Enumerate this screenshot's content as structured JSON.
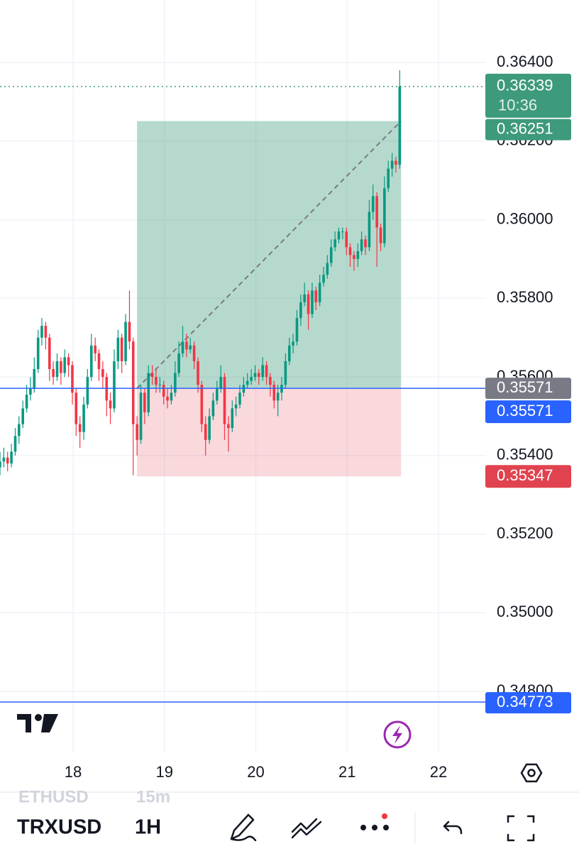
{
  "chart_data": {
    "type": "candlestick",
    "x": [
      17.2,
      17.242,
      17.283,
      17.325,
      17.367,
      17.408,
      17.45,
      17.492,
      17.533,
      17.575,
      17.617,
      17.658,
      17.7,
      17.742,
      17.783,
      17.825,
      17.867,
      17.908,
      17.95,
      17.992,
      18.033,
      18.075,
      18.117,
      18.158,
      18.2,
      18.242,
      18.283,
      18.325,
      18.367,
      18.408,
      18.45,
      18.492,
      18.533,
      18.575,
      18.617,
      18.658,
      18.7,
      18.742,
      18.783,
      18.825,
      18.867,
      18.908,
      18.95,
      18.992,
      19.033,
      19.075,
      19.117,
      19.158,
      19.2,
      19.242,
      19.283,
      19.325,
      19.367,
      19.408,
      19.45,
      19.492,
      19.533,
      19.575,
      19.617,
      19.658,
      19.7,
      19.742,
      19.783,
      19.825,
      19.867,
      19.908,
      19.95,
      19.992,
      20.033,
      20.075,
      20.117,
      20.158,
      20.2,
      20.242,
      20.283,
      20.325,
      20.367,
      20.408,
      20.45,
      20.492,
      20.533,
      20.575,
      20.617,
      20.658,
      20.7,
      20.742,
      20.783,
      20.825,
      20.867,
      20.908,
      20.95,
      20.992,
      21.033,
      21.075,
      21.117,
      21.158,
      21.2,
      21.242,
      21.283,
      21.325,
      21.367,
      21.408,
      21.45,
      21.492,
      21.533,
      21.575
    ],
    "open": [
      0.3537,
      0.35385,
      0.35395,
      0.3538,
      0.3541,
      0.3545,
      0.3548,
      0.3552,
      0.35555,
      0.3557,
      0.3562,
      0.357,
      0.3573,
      0.357,
      0.3562,
      0.356,
      0.3564,
      0.3561,
      0.3565,
      0.3563,
      0.3556,
      0.3548,
      0.3546,
      0.3553,
      0.356,
      0.3568,
      0.3566,
      0.3562,
      0.356,
      0.3554,
      0.3552,
      0.3564,
      0.357,
      0.3564,
      0.3574,
      0.3569,
      0.3548,
      0.3544,
      0.3556,
      0.3551,
      0.3561,
      0.356,
      0.3558,
      0.3558,
      0.3555,
      0.3554,
      0.3556,
      0.3561,
      0.3566,
      0.3569,
      0.3567,
      0.3568,
      0.3564,
      0.3558,
      0.3548,
      0.3544,
      0.355,
      0.3554,
      0.3557,
      0.356,
      0.3548,
      0.3547,
      0.3552,
      0.3553,
      0.3556,
      0.3558,
      0.3559,
      0.356,
      0.3561,
      0.356,
      0.3563,
      0.356,
      0.3558,
      0.3554,
      0.3556,
      0.3558,
      0.3564,
      0.3568,
      0.3569,
      0.3575,
      0.3579,
      0.3581,
      0.3576,
      0.3582,
      0.3579,
      0.3584,
      0.3586,
      0.3589,
      0.3593,
      0.3595,
      0.3597,
      0.3597,
      0.3593,
      0.3591,
      0.359,
      0.3592,
      0.3595,
      0.3593,
      0.3602,
      0.3606,
      0.3598,
      0.3594,
      0.3608,
      0.3613,
      0.3615,
      0.3614
    ],
    "high": [
      0.3541,
      0.3542,
      0.3541,
      0.3543,
      0.3547,
      0.355,
      0.3554,
      0.3558,
      0.356,
      0.3565,
      0.3572,
      0.3575,
      0.3574,
      0.3571,
      0.3564,
      0.3566,
      0.3565,
      0.3567,
      0.3566,
      0.3564,
      0.3557,
      0.355,
      0.3555,
      0.3562,
      0.3571,
      0.357,
      0.3567,
      0.3564,
      0.3561,
      0.3556,
      0.3567,
      0.3572,
      0.3571,
      0.3576,
      0.3582,
      0.357,
      0.355,
      0.3558,
      0.3557,
      0.3563,
      0.3563,
      0.3562,
      0.356,
      0.3559,
      0.3557,
      0.3558,
      0.3564,
      0.3569,
      0.3573,
      0.3571,
      0.357,
      0.3569,
      0.3565,
      0.3559,
      0.355,
      0.3552,
      0.3556,
      0.3559,
      0.3563,
      0.3561,
      0.355,
      0.3554,
      0.3555,
      0.3558,
      0.356,
      0.3561,
      0.3562,
      0.3563,
      0.3562,
      0.3565,
      0.3564,
      0.3561,
      0.3559,
      0.3558,
      0.356,
      0.3566,
      0.357,
      0.3571,
      0.3577,
      0.3581,
      0.3584,
      0.3582,
      0.3584,
      0.3583,
      0.3586,
      0.3588,
      0.3591,
      0.3595,
      0.3597,
      0.3598,
      0.3598,
      0.3598,
      0.3594,
      0.3592,
      0.3594,
      0.3597,
      0.3596,
      0.3605,
      0.3609,
      0.3607,
      0.3599,
      0.3611,
      0.3615,
      0.3617,
      0.3616,
      0.3638
    ],
    "low": [
      0.3535,
      0.3537,
      0.3536,
      0.3537,
      0.354,
      0.3543,
      0.3547,
      0.3551,
      0.3554,
      0.3556,
      0.3561,
      0.3568,
      0.3567,
      0.3559,
      0.3558,
      0.3559,
      0.3558,
      0.356,
      0.356,
      0.3553,
      0.3545,
      0.3542,
      0.3544,
      0.3552,
      0.3559,
      0.3564,
      0.3559,
      0.3557,
      0.355,
      0.3548,
      0.3551,
      0.3562,
      0.3561,
      0.3563,
      0.3567,
      0.3535,
      0.354,
      0.3543,
      0.3548,
      0.355,
      0.3558,
      0.3556,
      0.3556,
      0.3553,
      0.3552,
      0.3553,
      0.3555,
      0.356,
      0.3565,
      0.3565,
      0.3566,
      0.3562,
      0.3556,
      0.3546,
      0.354,
      0.3543,
      0.3549,
      0.3553,
      0.3556,
      0.3544,
      0.3541,
      0.3546,
      0.355,
      0.3552,
      0.3555,
      0.3557,
      0.3558,
      0.3559,
      0.3558,
      0.3559,
      0.3558,
      0.3555,
      0.3552,
      0.355,
      0.3554,
      0.3557,
      0.3563,
      0.3566,
      0.3568,
      0.3573,
      0.3578,
      0.3572,
      0.3575,
      0.3577,
      0.3578,
      0.3583,
      0.3585,
      0.3588,
      0.3592,
      0.3594,
      0.3595,
      0.3591,
      0.3588,
      0.3587,
      0.3588,
      0.3591,
      0.3591,
      0.3592,
      0.36,
      0.3588,
      0.3592,
      0.3593,
      0.3607,
      0.3611,
      0.3612,
      0.3613
    ],
    "close": [
      0.35385,
      0.35395,
      0.3538,
      0.3541,
      0.3545,
      0.3548,
      0.3552,
      0.35555,
      0.3557,
      0.3562,
      0.357,
      0.3573,
      0.357,
      0.3562,
      0.356,
      0.3564,
      0.3561,
      0.3565,
      0.3563,
      0.3556,
      0.3548,
      0.3546,
      0.3553,
      0.356,
      0.3568,
      0.3566,
      0.3562,
      0.356,
      0.3554,
      0.3552,
      0.3564,
      0.357,
      0.3564,
      0.3574,
      0.3569,
      0.3548,
      0.3544,
      0.3556,
      0.3551,
      0.3561,
      0.356,
      0.3558,
      0.3558,
      0.3555,
      0.3554,
      0.3556,
      0.3561,
      0.3566,
      0.3569,
      0.3567,
      0.3568,
      0.3564,
      0.3558,
      0.3548,
      0.3544,
      0.355,
      0.3554,
      0.3557,
      0.356,
      0.3548,
      0.3547,
      0.3552,
      0.3553,
      0.3556,
      0.3558,
      0.3559,
      0.356,
      0.3561,
      0.356,
      0.3563,
      0.356,
      0.3558,
      0.3554,
      0.3556,
      0.3558,
      0.3564,
      0.3568,
      0.3569,
      0.3575,
      0.3579,
      0.3581,
      0.3576,
      0.3582,
      0.3579,
      0.3584,
      0.3586,
      0.3589,
      0.3593,
      0.3595,
      0.3597,
      0.3597,
      0.3593,
      0.3591,
      0.359,
      0.3592,
      0.3595,
      0.3593,
      0.3602,
      0.3606,
      0.3598,
      0.3594,
      0.3608,
      0.3613,
      0.3615,
      0.3614,
      0.36339
    ],
    "up_color": "#089981",
    "down_color": "#f23645",
    "xlim": [
      17.2,
      22.52
    ],
    "ylim": [
      0.34645,
      0.36559
    ],
    "xticks": [
      18,
      19,
      20,
      21,
      22
    ],
    "yticks": [
      {
        "value": 0.348,
        "label": "0.34800"
      },
      {
        "value": 0.35,
        "label": "0.35000"
      },
      {
        "value": 0.352,
        "label": "0.35200"
      },
      {
        "value": 0.354,
        "label": "0.35400"
      },
      {
        "value": 0.356,
        "label": "0.35600"
      },
      {
        "value": 0.358,
        "label": "0.35800"
      },
      {
        "value": 0.36,
        "label": "0.36000"
      },
      {
        "value": 0.362,
        "label": "0.36200"
      },
      {
        "value": 0.364,
        "label": "0.36400"
      }
    ],
    "grid": true,
    "current_price": {
      "value": 0.36339,
      "countdown": "10:36",
      "color": "#3e9a7c"
    },
    "position": {
      "entry": 0.35571,
      "target": 0.36251,
      "stop": 0.35347,
      "start": 18.7,
      "end": 21.59,
      "entry_color": "#787b86",
      "target_color": "#3e9a7c",
      "stop_color": "#e0434f"
    },
    "horizontal_lines": [
      {
        "value": 0.35571,
        "color": "#2962ff"
      },
      {
        "value": 0.34773,
        "color": "#2962ff"
      }
    ]
  },
  "toolbar": {
    "previous_symbol": "ETHUSD",
    "previous_interval": "15m",
    "symbol": "TRXUSD",
    "interval": "1H"
  }
}
